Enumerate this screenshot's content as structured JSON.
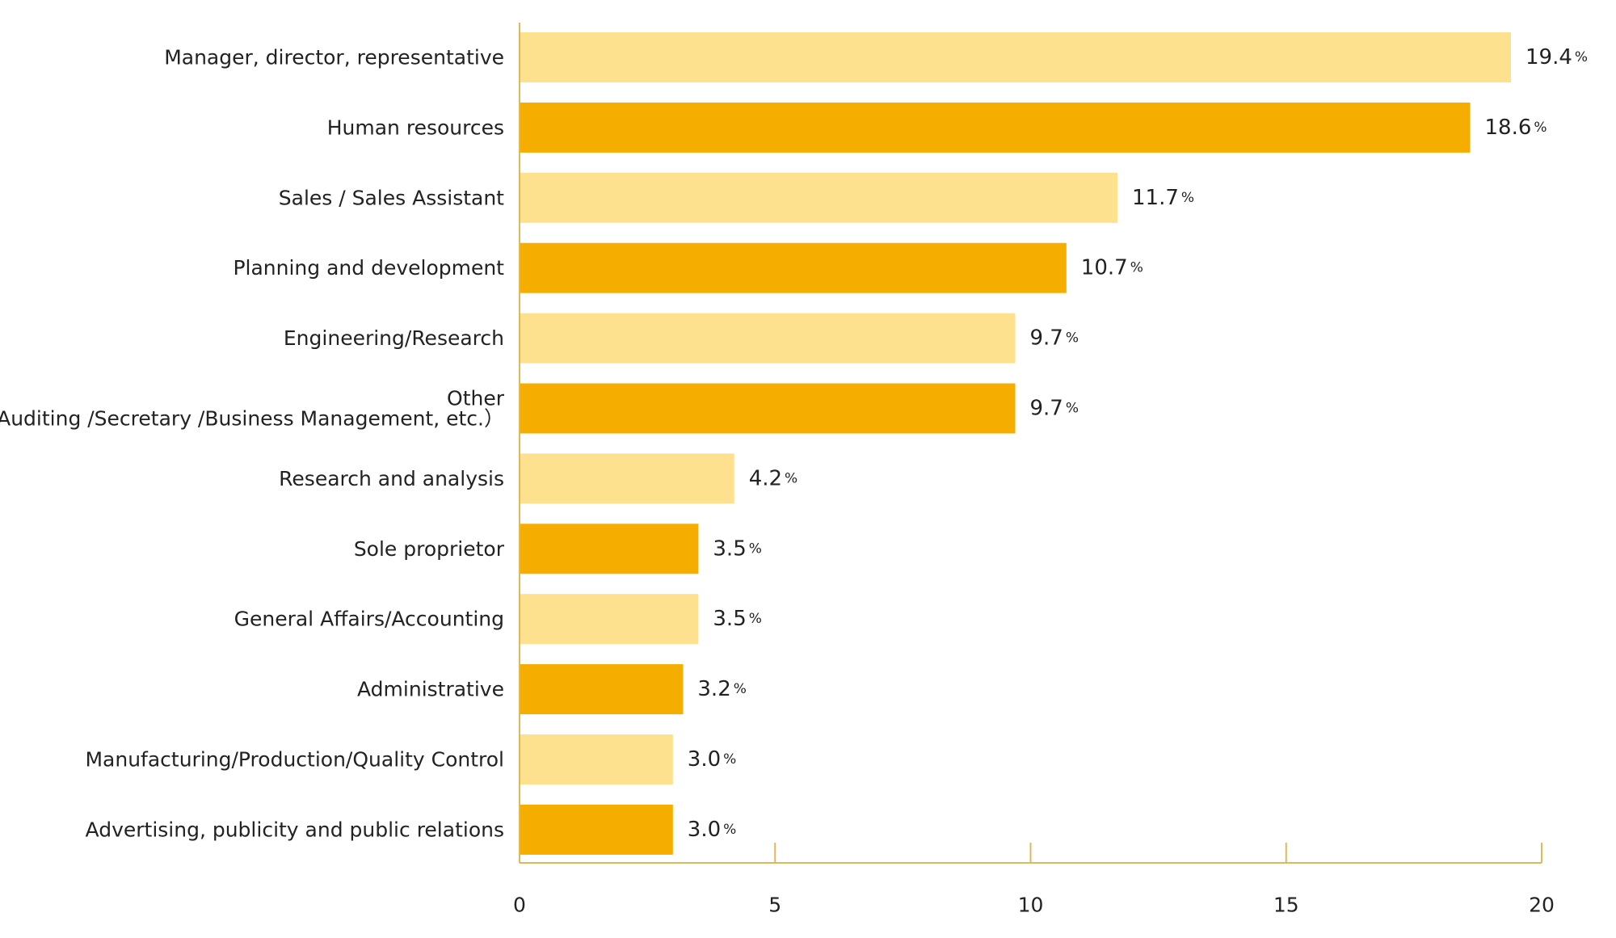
{
  "chart_data": {
    "type": "bar",
    "orientation": "horizontal",
    "categories": [
      [
        "Manager, director, representative"
      ],
      [
        "Human resources"
      ],
      [
        "Sales / Sales Assistant"
      ],
      [
        "Planning and development"
      ],
      [
        "Engineering/Research"
      ],
      [
        "Other",
        "（Auditing /Secretary /Business Management, etc.）"
      ],
      [
        "Research and analysis"
      ],
      [
        "Sole proprietor"
      ],
      [
        "General Affairs/Accounting"
      ],
      [
        "Administrative"
      ],
      [
        "Manufacturing/Production/Quality Control"
      ],
      [
        "Advertising, publicity and public relations"
      ]
    ],
    "values": [
      19.4,
      18.6,
      11.7,
      10.7,
      9.7,
      9.7,
      4.2,
      3.5,
      3.5,
      3.2,
      3.0,
      3.0
    ],
    "value_labels": [
      "19.4",
      "18.6",
      "11.7",
      "10.7",
      "9.7",
      "9.7",
      "4.2",
      "3.5",
      "3.5",
      "3.2",
      "3.0",
      "3.0"
    ],
    "value_unit": "%",
    "xlim": [
      0,
      20
    ],
    "x_ticks": [
      0,
      5,
      10,
      15,
      20
    ],
    "x_tick_labels": [
      "0",
      "5",
      "10",
      "15",
      "20"
    ],
    "title": "",
    "xlabel": "",
    "ylabel": "",
    "grid": false,
    "legend": "none",
    "colors": {
      "light": "#FDE18E",
      "dark": "#F5AD00",
      "axis": "#E0B85C"
    }
  }
}
